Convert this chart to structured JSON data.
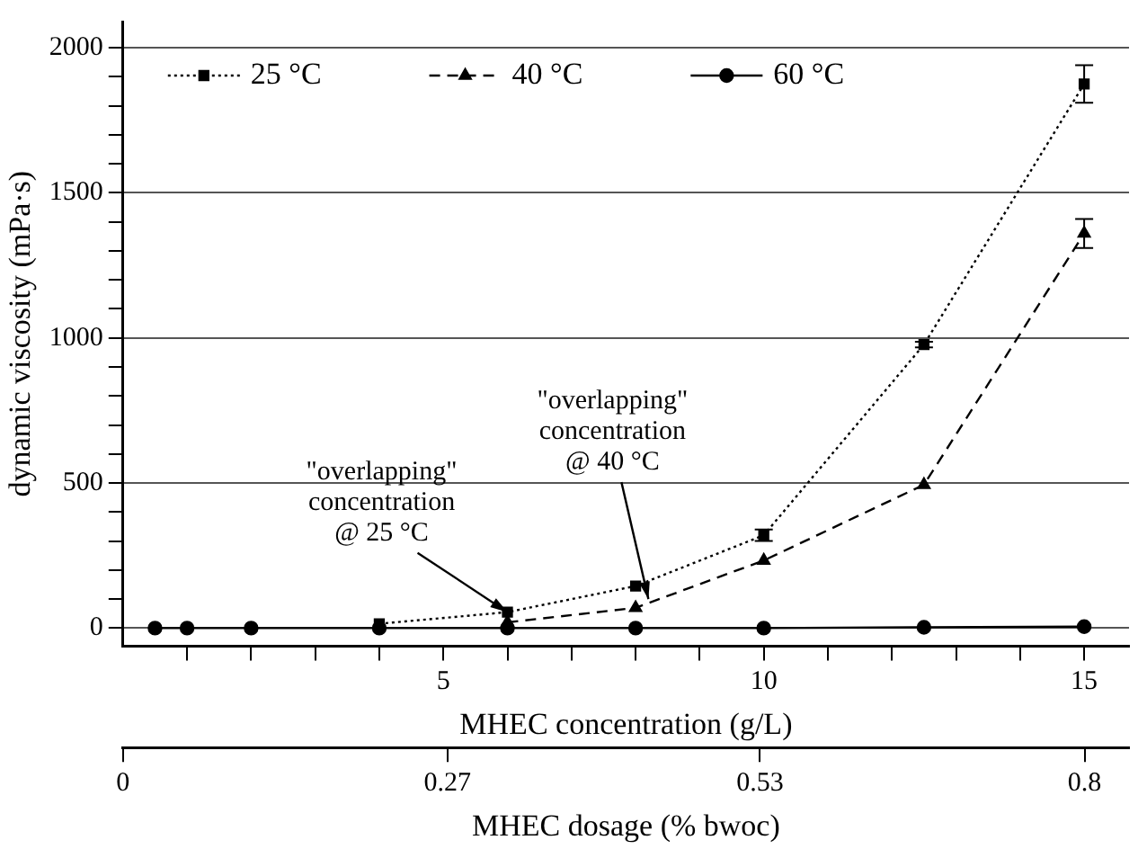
{
  "chart_data": {
    "type": "line",
    "xlabel": "MHEC concentration (g/L)",
    "ylabel": "dynamic viscosity (mPa·s)",
    "x2label": "MHEC dosage (% bwoc)",
    "xlim": [
      0,
      15.7
    ],
    "xticks": [
      {
        "value": 1,
        "label": null
      },
      {
        "value": 2,
        "label": null
      },
      {
        "value": 3,
        "label": null
      },
      {
        "value": 4,
        "label": null
      },
      5,
      {
        "value": 6,
        "label": null
      },
      {
        "value": 7,
        "label": null
      },
      {
        "value": 8,
        "label": null
      },
      {
        "value": 9,
        "label": null
      },
      10,
      {
        "value": 11,
        "label": null
      },
      {
        "value": 12,
        "label": null
      },
      {
        "value": 13,
        "label": null
      },
      {
        "value": 14,
        "label": null
      },
      15
    ],
    "x2lim": [
      0,
      0.837
    ],
    "x2ticks": [
      0,
      0.27,
      0.53,
      0.8
    ],
    "ylim": [
      -62,
      2090
    ],
    "yticks": [
      0,
      {
        "value": 100,
        "label": null
      },
      {
        "value": 200,
        "label": null
      },
      {
        "value": 300,
        "label": null
      },
      {
        "value": 400,
        "label": null
      },
      500,
      {
        "value": 600,
        "label": null
      },
      {
        "value": 700,
        "label": null
      },
      {
        "value": 800,
        "label": null
      },
      {
        "value": 900,
        "label": null
      },
      1000,
      {
        "value": 1100,
        "label": null
      },
      {
        "value": 1200,
        "label": null
      },
      {
        "value": 1300,
        "label": null
      },
      {
        "value": 1400,
        "label": null
      },
      1500,
      {
        "value": 1600,
        "label": null
      },
      {
        "value": 1700,
        "label": null
      },
      {
        "value": 1800,
        "label": null
      },
      {
        "value": 1900,
        "label": null
      },
      2000
    ],
    "grid": "y",
    "legend": "top left",
    "x": [
      0.5,
      1,
      2,
      4,
      6,
      8,
      10,
      12.5,
      15
    ],
    "series": [
      {
        "name": "25 °C",
        "color": "#000000",
        "marker": "square",
        "line_style": "dotted",
        "values": [
          null,
          null,
          null,
          15,
          55,
          145,
          320,
          977,
          1875
        ],
        "errors": [
          null,
          null,
          null,
          null,
          null,
          null,
          20,
          10,
          65
        ]
      },
      {
        "name": "40 °C",
        "color": "#000000",
        "marker": "triangle",
        "line_style": "dashed",
        "values": [
          null,
          null,
          null,
          null,
          20,
          70,
          233,
          494,
          1360
        ],
        "errors": [
          null,
          null,
          null,
          null,
          null,
          null,
          null,
          null,
          50
        ]
      },
      {
        "name": "60 °C",
        "color": "#000000",
        "marker": "circle",
        "line_style": "solid",
        "values": [
          0,
          0,
          0,
          0,
          0,
          0,
          0,
          3,
          5
        ]
      }
    ],
    "annotations": [
      {
        "text": "\"overlapping\"\nconcentration\n@ 25 °C",
        "x": 6,
        "y": 55
      },
      {
        "text": "\"overlapping\"\nconcentration\n@ 40 °C",
        "x": 8.2,
        "y": 100
      }
    ]
  }
}
